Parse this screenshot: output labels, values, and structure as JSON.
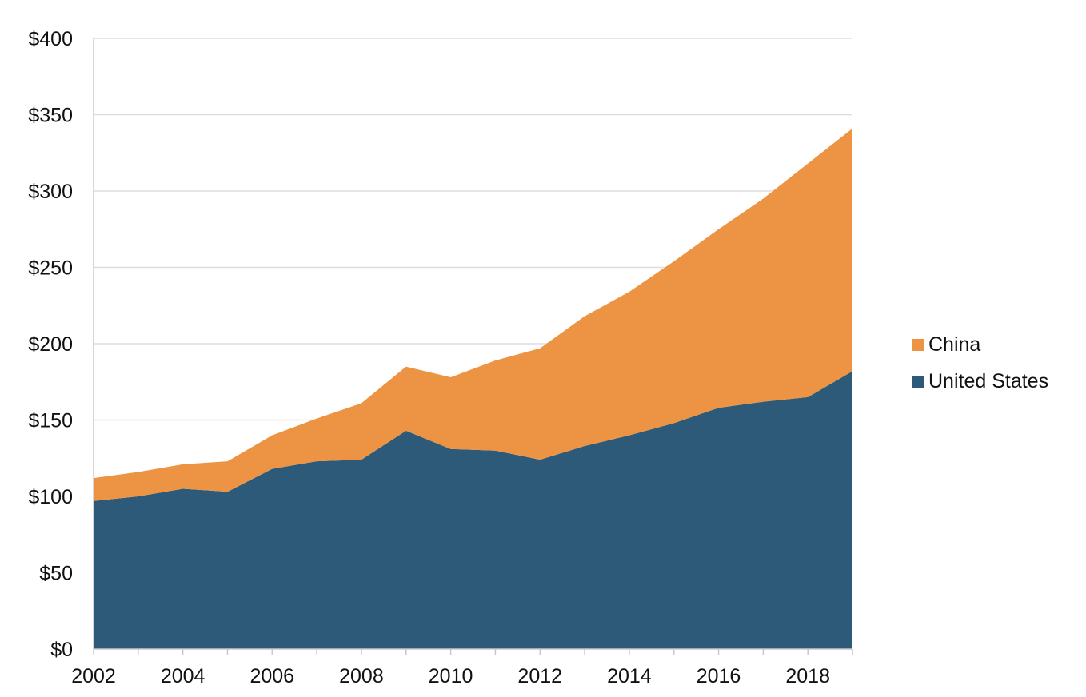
{
  "chart_data": {
    "type": "area",
    "stacked": true,
    "x": [
      2002,
      2003,
      2004,
      2005,
      2006,
      2007,
      2008,
      2009,
      2010,
      2011,
      2012,
      2013,
      2014,
      2015,
      2016,
      2017,
      2018,
      2019
    ],
    "series": [
      {
        "name": "United States",
        "color": "#2e5a7a",
        "values": [
          97,
          100,
          105,
          103,
          118,
          123,
          124,
          143,
          131,
          130,
          124,
          133,
          140,
          148,
          158,
          162,
          165,
          182
        ]
      },
      {
        "name": "China",
        "color": "#ec9443",
        "values": [
          15,
          16,
          16,
          20,
          22,
          28,
          37,
          42,
          47,
          59,
          73,
          85,
          94,
          106,
          117,
          133,
          153,
          159
        ]
      }
    ],
    "ylim": [
      0,
      400
    ],
    "yticks": [
      0,
      50,
      100,
      150,
      200,
      250,
      300,
      350,
      400
    ],
    "ytick_labels": [
      "$0",
      "$50",
      "$100",
      "$150",
      "$200",
      "$250",
      "$300",
      "$350",
      "$400"
    ],
    "xticks": [
      2002,
      2004,
      2006,
      2008,
      2010,
      2012,
      2014,
      2016,
      2018
    ],
    "xtick_labels": [
      "2002",
      "2004",
      "2006",
      "2008",
      "2010",
      "2012",
      "2014",
      "2016",
      "2018"
    ],
    "grid": true,
    "legend_position": "right",
    "legend": [
      "China",
      "United States"
    ],
    "grid_color": "#dddddd",
    "axis_color": "#c8c8c8"
  }
}
